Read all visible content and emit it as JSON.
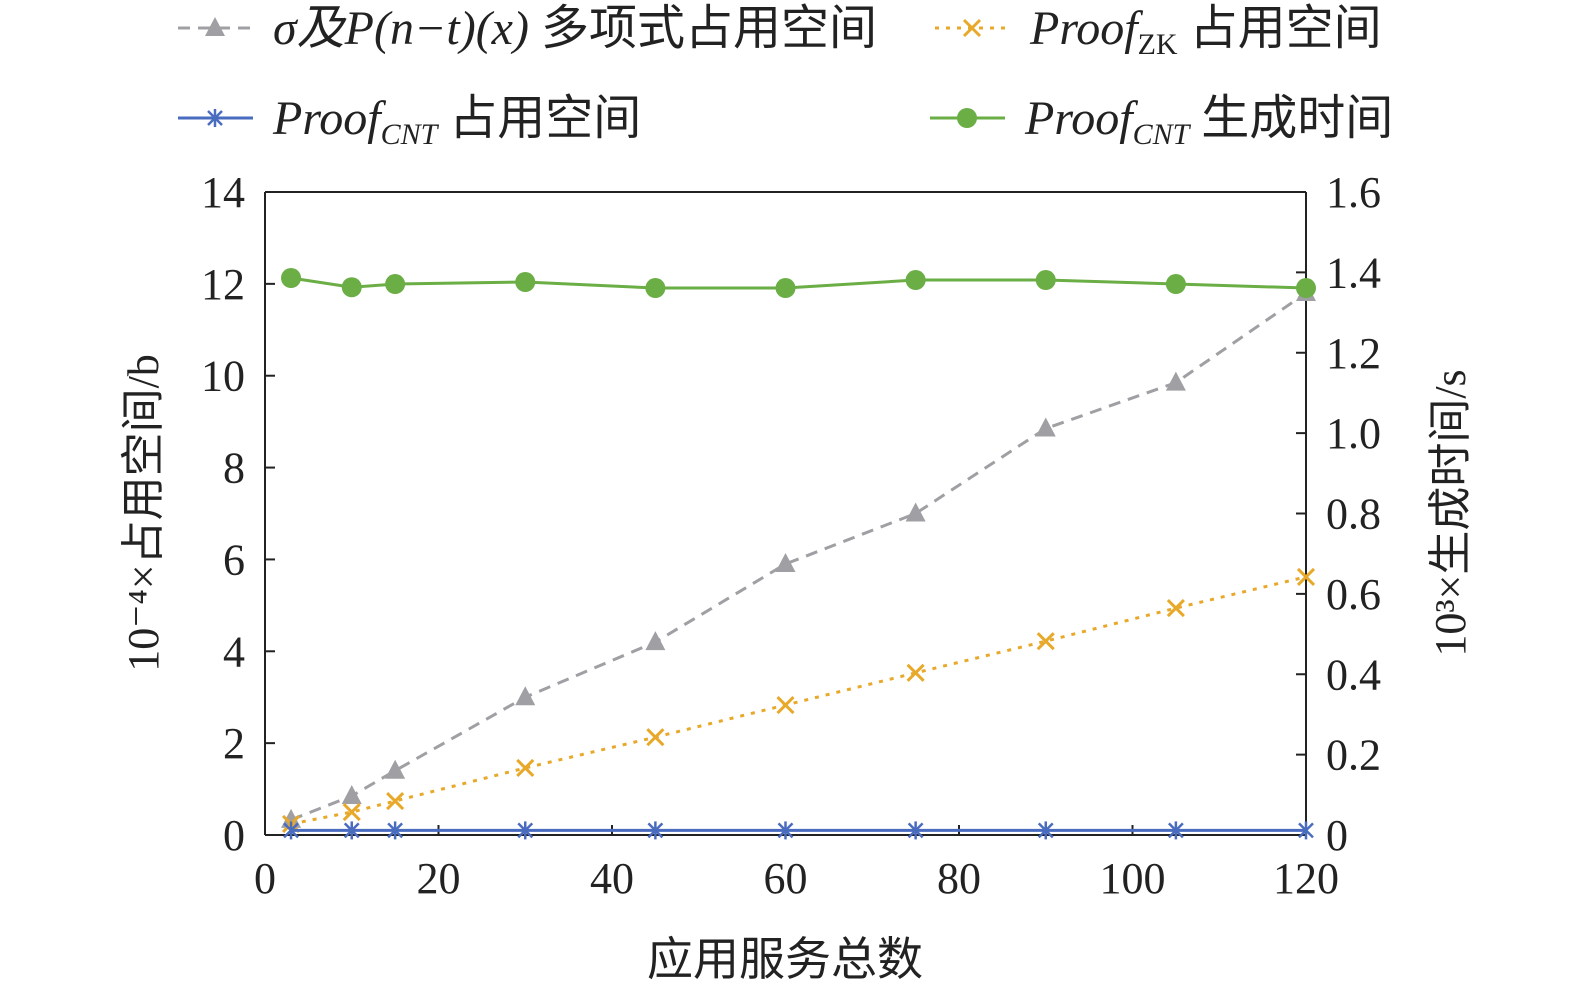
{
  "chart_data": {
    "type": "line",
    "title": "",
    "xlabel": "应用服务总数",
    "ylabel_left": "10⁻⁴×占用空间/b",
    "ylabel_right": "10³×生成时间/s",
    "xlim": [
      0,
      120
    ],
    "ylim_left": [
      0,
      14
    ],
    "ylim_right": [
      0,
      1.6
    ],
    "x_ticks": [
      "0",
      "20",
      "40",
      "60",
      "80",
      "100",
      "120"
    ],
    "y_left_ticks": [
      "0",
      "2",
      "4",
      "6",
      "8",
      "10",
      "12",
      "14"
    ],
    "y_right_ticks": [
      "0",
      "0.2",
      "0.4",
      "0.6",
      "0.8",
      "1.0",
      "1.2",
      "1.4",
      "1.6"
    ],
    "grid": false,
    "legend_position": "top",
    "x": [
      3,
      10,
      15,
      30,
      45,
      60,
      75,
      90,
      105,
      120
    ],
    "series": [
      {
        "name": "σ及P(n−t)(x) 多项式占用空间",
        "legend": {
          "main": "σ及P(n−t)(x)",
          "sub": "",
          "suffix": " 多项式占用空间"
        },
        "axis": "left",
        "color": "#a0a0a4",
        "marker": "triangle",
        "dash": "dashed",
        "values": [
          0.33,
          0.85,
          1.4,
          3.0,
          4.2,
          5.9,
          7.0,
          8.85,
          9.85,
          11.8
        ]
      },
      {
        "name": "Proof_ZK 占用空间",
        "legend": {
          "main": "Proof",
          "sub": "ZK",
          "suffix": " 占用空间"
        },
        "axis": "left",
        "color": "#e8a92a",
        "marker": "x",
        "dash": "dotted",
        "values": [
          0.24,
          0.5,
          0.74,
          1.46,
          2.13,
          2.83,
          3.53,
          4.22,
          4.94,
          5.62
        ]
      },
      {
        "name": "Proof_CNT 占用空间",
        "legend": {
          "main": "Proof",
          "sub": "CNT",
          "suffix": " 占用空间"
        },
        "axis": "left",
        "color": "#4a6cbf",
        "marker": "asterisk",
        "dash": "solid",
        "values": [
          0.1,
          0.1,
          0.1,
          0.1,
          0.1,
          0.1,
          0.1,
          0.1,
          0.1,
          0.1
        ]
      },
      {
        "name": "Proof_CNT 生成时间",
        "legend": {
          "main": "Proof",
          "sub": "CNT",
          "suffix": " 生成时间"
        },
        "axis": "right",
        "color": "#6aae45",
        "marker": "circle",
        "dash": "solid",
        "values": [
          1.386,
          1.363,
          1.371,
          1.376,
          1.361,
          1.361,
          1.381,
          1.381,
          1.371,
          1.361
        ]
      }
    ]
  }
}
